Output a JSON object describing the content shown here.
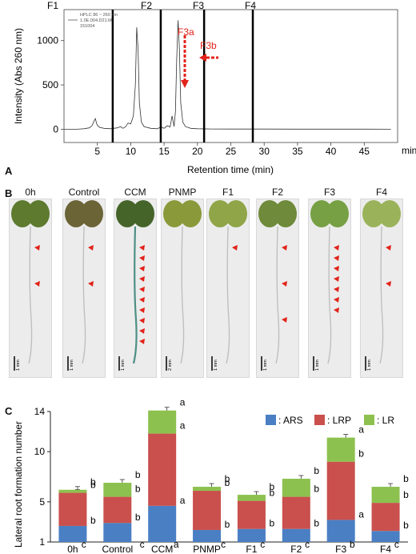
{
  "panelA": {
    "letter": "A",
    "fractions": [
      "F1",
      "F2",
      "F3",
      "F4"
    ],
    "ylabel": "Intensity (Abs 260 nm)",
    "xlabel": "Retention time (min)",
    "xunit": "min",
    "legend_lines": [
      "HPLC 86 ~ 260 nm",
      "1.0E.004.D21.M",
      "151004"
    ],
    "annotations": {
      "f3a": "F3a",
      "f3b": "F3b"
    },
    "chart_data": {
      "type": "line",
      "xlabel": "Retention time (min)",
      "ylabel": "Intensity (Abs 260 nm)",
      "xlim": [
        0,
        50
      ],
      "ylim": [
        -150,
        1350
      ],
      "xticks": [
        5,
        10,
        15,
        20,
        25,
        30,
        35,
        40,
        45
      ],
      "yticks": [
        0,
        500,
        1000
      ],
      "fraction_boundaries": [
        7.3,
        14.5,
        21,
        28.3
      ],
      "series": [
        {
          "x": [
            0,
            2,
            3,
            3.8,
            4.2,
            4.5,
            4.7,
            4.9,
            5.1,
            5.4,
            6,
            7,
            8,
            8.5,
            8.8,
            9.2,
            9.6,
            10,
            10.4,
            10.7,
            10.9,
            11.1,
            11.3,
            11.6,
            12,
            13,
            14,
            14.5,
            15,
            15.5,
            15.9,
            16.2,
            16.5,
            16.7,
            16.9,
            17.1,
            17.3,
            17.5,
            17.8,
            18.2,
            19,
            20,
            22,
            25,
            30,
            35,
            40,
            45,
            49
          ],
          "y": [
            0,
            0,
            5,
            15,
            40,
            90,
            120,
            60,
            35,
            20,
            10,
            5,
            15,
            30,
            10,
            25,
            70,
            60,
            150,
            500,
            1150,
            900,
            300,
            80,
            30,
            10,
            5,
            25,
            10,
            40,
            25,
            150,
            30,
            200,
            800,
            1230,
            900,
            300,
            80,
            30,
            10,
            5,
            3,
            2,
            2,
            1,
            1,
            1,
            0
          ]
        }
      ]
    }
  },
  "panelB": {
    "letter": "B",
    "labels": [
      "0h",
      "Control",
      "CCM",
      "PNMP",
      "F1",
      "F2",
      "F3",
      "F4"
    ],
    "scalebars": [
      "1 mm",
      "1 mm",
      "1 mm",
      "2 mm",
      "1 mm",
      "1 mm",
      "1 mm",
      "1 mm"
    ],
    "arrowheads": [
      2,
      2,
      10,
      0,
      1,
      3,
      7,
      2
    ]
  },
  "panelC": {
    "letter": "C",
    "ylabel": "Lateral root formation  number",
    "legend": {
      "ars": ": ARS",
      "lrp": ": LRP",
      "lr": ": LR"
    },
    "colors": {
      "ars": "#4a7fc4",
      "lrp": "#c9504d",
      "lr": "#8dc14f"
    },
    "chart_data": {
      "type": "bar",
      "stacked": true,
      "ylabel": "Lateral root formation  number",
      "categories": [
        "0h",
        "Control",
        "CCM",
        "PNMP",
        "F1",
        "F2",
        "F3",
        "F4"
      ],
      "category_letters": [
        "c",
        "c",
        "a",
        "c",
        "c",
        "c",
        "b",
        "c"
      ],
      "ylim": [
        1,
        14
      ],
      "yticks": [
        1,
        5,
        10,
        14
      ],
      "series": [
        {
          "name": "ARS",
          "base": 1,
          "values": [
            1.6,
            1.9,
            3.6,
            1.2,
            1.3,
            1.3,
            2.2,
            1.1
          ],
          "letters": [
            "b",
            "b",
            "a",
            "b",
            "b",
            "b",
            "a",
            "b"
          ]
        },
        {
          "name": "LRP",
          "values": [
            3.3,
            2.6,
            7.2,
            3.9,
            2.8,
            3.2,
            5.8,
            2.8
          ],
          "letters": [
            "",
            "",
            "",
            "",
            "",
            "",
            "",
            ""
          ]
        },
        {
          "name": "LR",
          "values": [
            0.3,
            1.4,
            2.3,
            0.4,
            0.6,
            1.8,
            2.4,
            1.6
          ],
          "letters": [
            "b",
            "b",
            "a",
            "b",
            "b",
            "b",
            "a",
            "b"
          ]
        }
      ],
      "lrp_letters": [
        "b",
        "b",
        "a",
        "b",
        "b",
        "b",
        "b",
        "b"
      ]
    }
  }
}
